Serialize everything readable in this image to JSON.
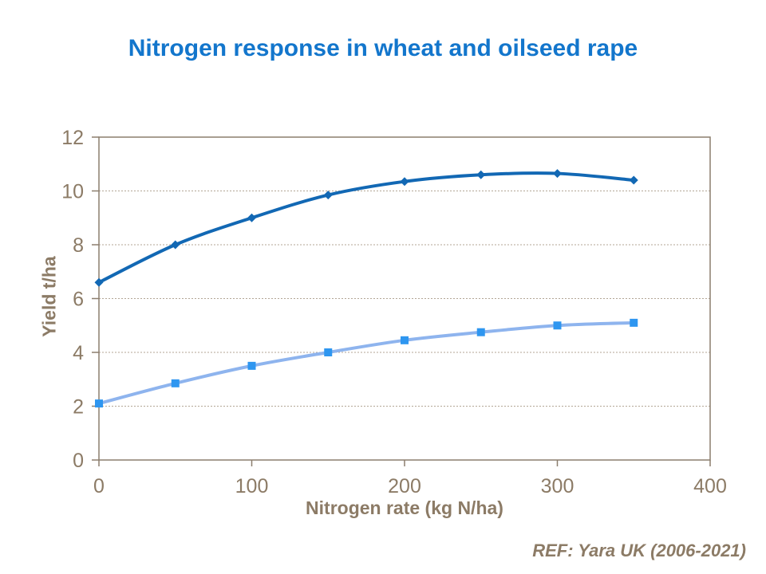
{
  "title": {
    "text": "Nitrogen response in wheat and oilseed rape",
    "color": "#1376CC"
  },
  "footer": {
    "ref_text": "REF: Yara UK (2006-2021)"
  },
  "chart_data": {
    "type": "line",
    "title": "Nitrogen response in wheat and oilseed rape",
    "xlabel": "Nitrogen rate (kg N/ha)",
    "ylabel": "Yield t/ha",
    "x": [
      0,
      50,
      100,
      150,
      200,
      250,
      300,
      350
    ],
    "series": [
      {
        "name": "wheat",
        "marker": "diamond",
        "line_color": "#1268B4",
        "marker_color": "#1268B4",
        "values": [
          6.6,
          8.0,
          9.0,
          9.85,
          10.35,
          10.6,
          10.65,
          10.4
        ]
      },
      {
        "name": "oilseed rape",
        "marker": "square",
        "line_color": "#8EB4EE",
        "marker_color": "#2E96F0",
        "values": [
          2.1,
          2.85,
          3.5,
          4.0,
          4.45,
          4.75,
          5.0,
          5.1
        ]
      }
    ],
    "xlim": [
      0,
      400
    ],
    "ylim": [
      0,
      12
    ],
    "x_ticks": [
      0,
      100,
      200,
      300,
      400
    ],
    "y_ticks": [
      0,
      2,
      4,
      6,
      8,
      10,
      12
    ],
    "grid": true,
    "legend_position": "none",
    "axis_color": "#8C7B66",
    "border_color": "#8C7E6E",
    "gridline_color": "#B3A695"
  }
}
